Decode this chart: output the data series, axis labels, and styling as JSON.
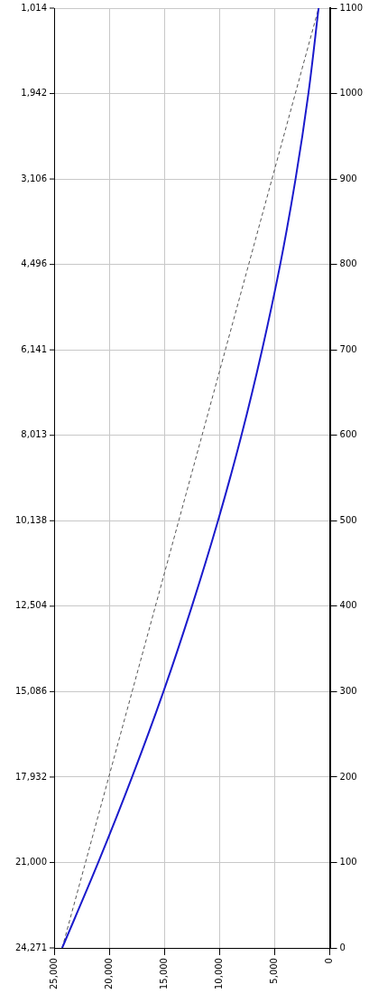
{
  "chart_data": {
    "type": "line",
    "series": [
      {
        "color": "#1a1acc",
        "x": [
          24271,
          21000,
          17932,
          15086,
          12504,
          10138,
          8013,
          6141,
          4496,
          3106,
          1942,
          1014
        ],
        "values": [
          0,
          100,
          200,
          300,
          400,
          500,
          600,
          700,
          800,
          900,
          1000,
          1100
        ]
      },
      {
        "color": "#555555",
        "line_style": "dashed",
        "x": [
          24271,
          1014
        ],
        "values": [
          0,
          1100
        ]
      }
    ],
    "xlim": [
      25000,
      0
    ],
    "xticks": [
      {
        "value": 25000,
        "label": "25,000"
      },
      {
        "value": 20000,
        "label": "20,000"
      },
      {
        "value": 15000,
        "label": "15,000"
      },
      {
        "value": 10000,
        "label": "10,000"
      },
      {
        "value": 5000,
        "label": "5,000"
      },
      0
    ],
    "ylim": [
      0,
      1100
    ],
    "yticks": [
      0,
      100,
      200,
      300,
      400,
      500,
      600,
      700,
      800,
      900,
      1000,
      1100
    ],
    "annotations": [
      "24,271",
      "21,000",
      "17,932",
      "15,086",
      "12,504",
      "10,138",
      "8,013",
      "6,141",
      "4,496",
      "3,106",
      "1,942",
      "1,014"
    ],
    "grid": true,
    "legend": false,
    "marker": "none"
  }
}
